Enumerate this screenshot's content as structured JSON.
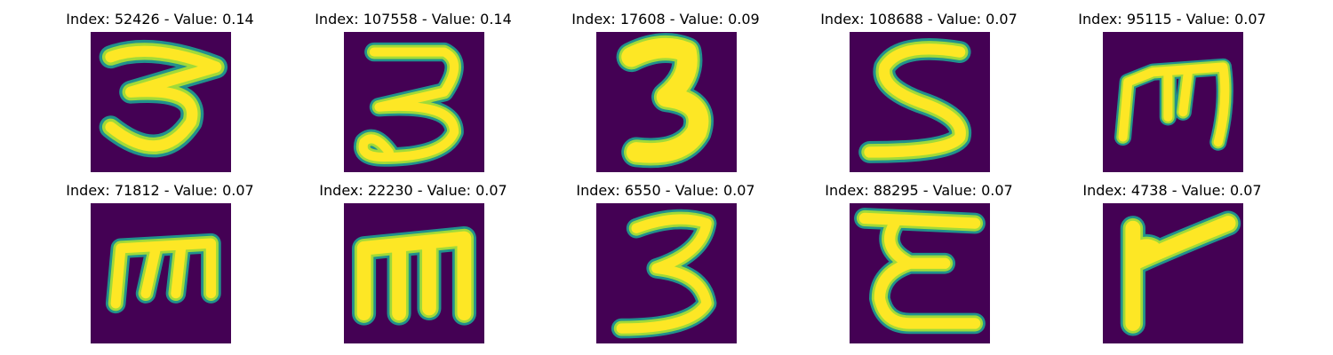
{
  "colors": {
    "background": "#440154",
    "stroke_core": "#fde725",
    "stroke_mid": "#a0da39",
    "stroke_edge": "#21918c"
  },
  "panels": [
    {
      "title": "Index: 52426 - Value: 0.14",
      "glyph": "digit-3-like"
    },
    {
      "title": "Index: 107558 - Value: 0.14",
      "glyph": "digit-3-like"
    },
    {
      "title": "Index: 17608 - Value: 0.09",
      "glyph": "digit-3-like"
    },
    {
      "title": "Index: 108688 - Value: 0.07",
      "glyph": "letter-s-like"
    },
    {
      "title": "Index: 95115 - Value: 0.07",
      "glyph": "letter-m-like"
    },
    {
      "title": "Index: 71812 - Value: 0.07",
      "glyph": "letter-m-like"
    },
    {
      "title": "Index: 22230 - Value: 0.07",
      "glyph": "letter-m-like"
    },
    {
      "title": "Index: 6550 - Value: 0.07",
      "glyph": "digit-3-like"
    },
    {
      "title": "Index: 88295 - Value: 0.07",
      "glyph": "letter-e-like"
    },
    {
      "title": "Index: 4738 - Value: 0.07",
      "glyph": "letter-r-like"
    }
  ]
}
